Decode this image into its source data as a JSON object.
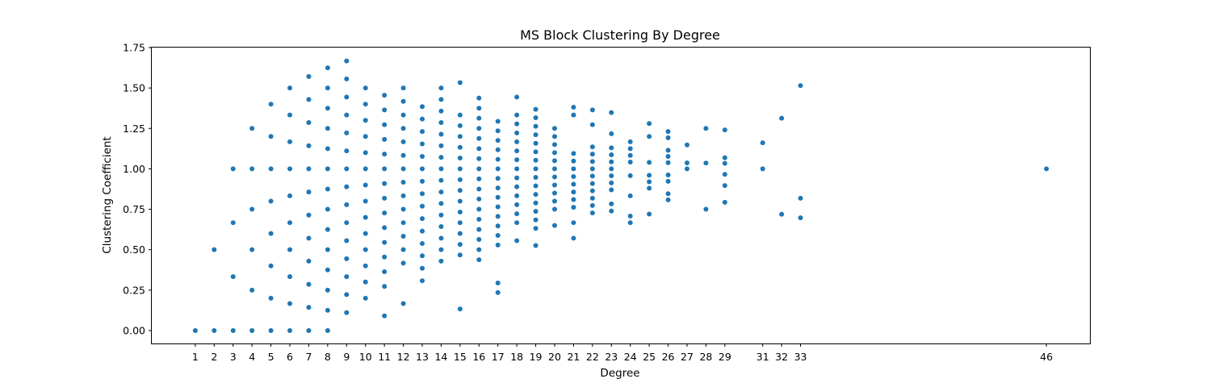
{
  "chart_data": {
    "type": "scatter",
    "title": "MS Block Clustering By Degree",
    "xlabel": "Degree",
    "ylabel": "Clustering Coefficient",
    "xlim": [
      -1.3,
      48.3
    ],
    "ylim": [
      -0.08,
      1.75
    ],
    "xticks": [
      1,
      2,
      3,
      4,
      5,
      6,
      7,
      8,
      9,
      10,
      11,
      12,
      13,
      14,
      15,
      16,
      17,
      18,
      19,
      20,
      21,
      22,
      23,
      24,
      25,
      26,
      27,
      28,
      29,
      31,
      32,
      33,
      46
    ],
    "yticks": [
      0.0,
      0.25,
      0.5,
      0.75,
      1.0,
      1.25,
      1.5,
      1.75
    ],
    "ytick_labels": [
      "0.00",
      "0.25",
      "0.50",
      "0.75",
      "1.00",
      "1.25",
      "1.50",
      "1.75"
    ],
    "grid": false,
    "marker_color": "#1f77b4",
    "points_by_degree": [
      {
        "x": 1,
        "y": [
          0.0
        ]
      },
      {
        "x": 2,
        "y": [
          0.0,
          0.5
        ]
      },
      {
        "x": 3,
        "y": [
          0.0,
          0.333,
          0.667,
          1.0
        ]
      },
      {
        "x": 4,
        "y": [
          0.0,
          0.25,
          0.5,
          0.75,
          1.0,
          1.25
        ]
      },
      {
        "x": 5,
        "y": [
          0.0,
          0.2,
          0.4,
          0.6,
          0.8,
          1.0,
          1.2,
          1.4
        ]
      },
      {
        "x": 6,
        "y": [
          0.0,
          0.167,
          0.333,
          0.5,
          0.667,
          0.833,
          1.0,
          1.167,
          1.333,
          1.5
        ]
      },
      {
        "x": 7,
        "y": [
          0.0,
          0.143,
          0.286,
          0.429,
          0.571,
          0.714,
          0.857,
          1.0,
          1.143,
          1.286,
          1.429,
          1.571
        ]
      },
      {
        "x": 8,
        "y": [
          0.0,
          0.125,
          0.25,
          0.375,
          0.5,
          0.625,
          0.75,
          0.875,
          1.0,
          1.125,
          1.25,
          1.375,
          1.5,
          1.625
        ]
      },
      {
        "x": 9,
        "y": [
          0.111,
          0.222,
          0.333,
          0.444,
          0.556,
          0.667,
          0.778,
          0.889,
          1.0,
          1.111,
          1.222,
          1.333,
          1.444,
          1.556,
          1.667
        ]
      },
      {
        "x": 10,
        "y": [
          0.2,
          0.3,
          0.4,
          0.5,
          0.6,
          0.7,
          0.8,
          0.9,
          1.0,
          1.1,
          1.2,
          1.3,
          1.4,
          1.5
        ]
      },
      {
        "x": 11,
        "y": [
          0.091,
          0.273,
          0.364,
          0.455,
          0.545,
          0.636,
          0.727,
          0.818,
          0.909,
          1.0,
          1.091,
          1.182,
          1.273,
          1.364,
          1.455
        ]
      },
      {
        "x": 12,
        "y": [
          0.167,
          0.417,
          0.5,
          0.583,
          0.667,
          0.75,
          0.833,
          0.917,
          1.0,
          1.083,
          1.167,
          1.25,
          1.333,
          1.417,
          1.5
        ]
      },
      {
        "x": 13,
        "y": [
          0.308,
          0.385,
          0.462,
          0.538,
          0.615,
          0.692,
          0.769,
          0.846,
          0.923,
          1.0,
          1.077,
          1.154,
          1.231,
          1.308,
          1.385
        ]
      },
      {
        "x": 14,
        "y": [
          0.429,
          0.5,
          0.571,
          0.643,
          0.714,
          0.786,
          0.857,
          0.929,
          1.0,
          1.071,
          1.143,
          1.214,
          1.286,
          1.357,
          1.429,
          1.5
        ]
      },
      {
        "x": 15,
        "y": [
          0.133,
          0.467,
          0.533,
          0.6,
          0.667,
          0.733,
          0.8,
          0.867,
          0.933,
          1.0,
          1.067,
          1.133,
          1.2,
          1.267,
          1.333,
          1.533
        ]
      },
      {
        "x": 16,
        "y": [
          0.438,
          0.5,
          0.563,
          0.625,
          0.688,
          0.75,
          0.813,
          0.875,
          0.938,
          1.0,
          1.063,
          1.125,
          1.188,
          1.25,
          1.313,
          1.375,
          1.438
        ]
      },
      {
        "x": 17,
        "y": [
          0.235,
          0.294,
          0.529,
          0.588,
          0.647,
          0.706,
          0.765,
          0.824,
          0.882,
          0.941,
          1.0,
          1.059,
          1.118,
          1.176,
          1.235,
          1.294
        ]
      },
      {
        "x": 18,
        "y": [
          0.556,
          0.667,
          0.722,
          0.778,
          0.833,
          0.889,
          0.944,
          1.0,
          1.056,
          1.111,
          1.167,
          1.222,
          1.278,
          1.333,
          1.444
        ]
      },
      {
        "x": 19,
        "y": [
          0.526,
          0.632,
          0.684,
          0.737,
          0.789,
          0.842,
          0.895,
          0.947,
          1.0,
          1.053,
          1.105,
          1.158,
          1.211,
          1.263,
          1.316,
          1.368
        ]
      },
      {
        "x": 20,
        "y": [
          0.65,
          0.75,
          0.8,
          0.85,
          0.9,
          0.95,
          1.0,
          1.05,
          1.1,
          1.15,
          1.2,
          1.25
        ]
      },
      {
        "x": 21,
        "y": [
          0.571,
          0.667,
          0.762,
          0.81,
          0.857,
          0.905,
          0.952,
          1.0,
          1.048,
          1.095,
          1.333,
          1.381
        ]
      },
      {
        "x": 22,
        "y": [
          0.727,
          0.773,
          0.818,
          0.864,
          0.909,
          0.955,
          1.0,
          1.045,
          1.091,
          1.136,
          1.273,
          1.364
        ]
      },
      {
        "x": 23,
        "y": [
          0.739,
          0.783,
          0.87,
          0.913,
          0.957,
          1.0,
          1.043,
          1.087,
          1.13,
          1.217,
          1.348
        ]
      },
      {
        "x": 24,
        "y": [
          0.667,
          0.708,
          0.833,
          0.958,
          1.042,
          1.083,
          1.125,
          1.167
        ]
      },
      {
        "x": 25,
        "y": [
          0.72,
          0.88,
          0.92,
          0.96,
          1.04,
          1.2,
          1.28
        ]
      },
      {
        "x": 26,
        "y": [
          0.808,
          0.846,
          0.923,
          0.962,
          1.038,
          1.077,
          1.115,
          1.192,
          1.231
        ]
      },
      {
        "x": 27,
        "y": [
          1.0,
          1.037,
          1.148
        ]
      },
      {
        "x": 28,
        "y": [
          0.75,
          1.036,
          1.25
        ]
      },
      {
        "x": 29,
        "y": [
          0.793,
          0.897,
          0.966,
          1.034,
          1.069,
          1.241
        ]
      },
      {
        "x": 31,
        "y": [
          1.0,
          1.161
        ]
      },
      {
        "x": 32,
        "y": [
          0.719,
          1.313
        ]
      },
      {
        "x": 33,
        "y": [
          0.697,
          0.818,
          1.515
        ]
      },
      {
        "x": 46,
        "y": [
          1.0
        ]
      }
    ]
  }
}
